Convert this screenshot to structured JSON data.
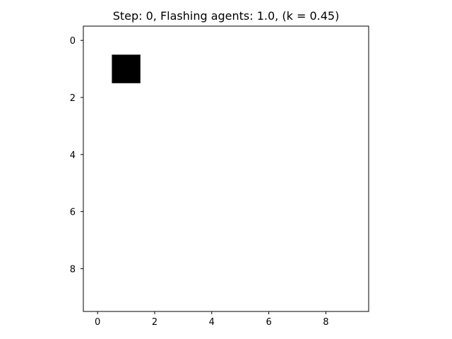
{
  "chart_data": {
    "type": "heatmap",
    "title": "Step: 0, Flashing agents: 1.0, (k = 0.45)",
    "xlabel": "",
    "ylabel": "",
    "grid_size": [
      10,
      10
    ],
    "xlim": [
      -0.5,
      9.5
    ],
    "ylim": [
      9.5,
      -0.5
    ],
    "y_inverted": true,
    "grid": false,
    "legend": "none",
    "xticks": [
      0,
      2,
      4,
      6,
      8
    ],
    "yticks": [
      0,
      2,
      4,
      6,
      8
    ],
    "xtick_labels": [
      "0",
      "2",
      "4",
      "6",
      "8"
    ],
    "ytick_labels": [
      "0",
      "2",
      "4",
      "6",
      "8"
    ],
    "cells": [
      {
        "row": 1,
        "col": 1,
        "value": 1
      }
    ],
    "colors": {
      "on": "#000000",
      "off": "#ffffff"
    }
  }
}
